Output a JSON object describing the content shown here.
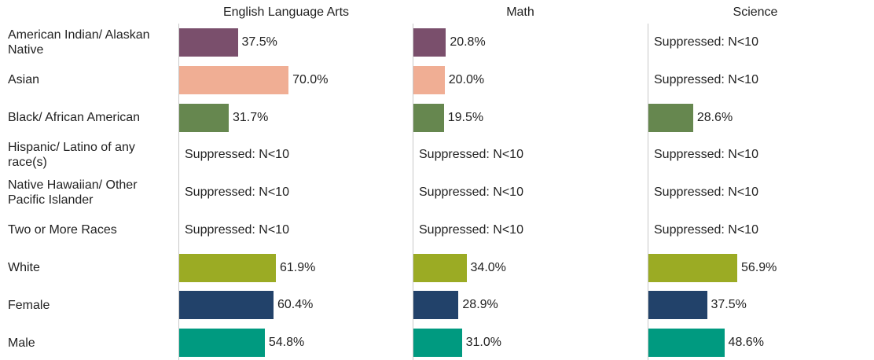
{
  "chart_data": {
    "type": "bar",
    "orientation": "horizontal",
    "categories": [
      "American Indian/ Alaskan Native",
      "Asian",
      "Black/ African American",
      "Hispanic/ Latino of any race(s)",
      "Native Hawaiian/ Other Pacific Islander",
      "Two or More Races",
      "White",
      "Female",
      "Male"
    ],
    "colors": [
      "#7a4f6c",
      "#f0ae94",
      "#66874f",
      null,
      null,
      null,
      "#9bab24",
      "#22426a",
      "#009a80"
    ],
    "xlim": [
      0,
      150
    ],
    "series": [
      {
        "name": "English Language Arts",
        "values": [
          37.5,
          70.0,
          31.7,
          null,
          null,
          null,
          61.9,
          60.4,
          54.8
        ],
        "value_labels": [
          "37.5%",
          "70.0%",
          "31.7%",
          "Suppressed: N<10",
          "Suppressed: N<10",
          "Suppressed: N<10",
          "61.9%",
          "60.4%",
          "54.8%"
        ]
      },
      {
        "name": "Math",
        "values": [
          20.8,
          20.0,
          19.5,
          null,
          null,
          null,
          34.0,
          28.9,
          31.0
        ],
        "value_labels": [
          "20.8%",
          "20.0%",
          "19.5%",
          "Suppressed: N<10",
          "Suppressed: N<10",
          "Suppressed: N<10",
          "34.0%",
          "28.9%",
          "31.0%"
        ]
      },
      {
        "name": "Science",
        "values": [
          null,
          null,
          28.6,
          null,
          null,
          null,
          56.9,
          37.5,
          48.6
        ],
        "value_labels": [
          "Suppressed: N<10",
          "Suppressed: N<10",
          "28.6%",
          "Suppressed: N<10",
          "Suppressed: N<10",
          "Suppressed: N<10",
          "56.9%",
          "37.5%",
          "48.6%"
        ]
      }
    ]
  }
}
